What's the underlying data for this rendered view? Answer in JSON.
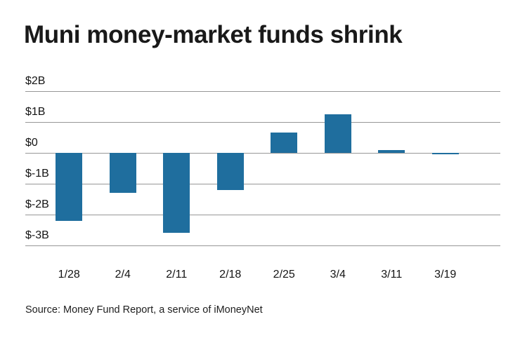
{
  "chart_data": {
    "type": "bar",
    "title": "Muni money-market funds shrink",
    "source": "Source: Money Fund Report, a service of iMoneyNet",
    "categories": [
      "1/28",
      "2/4",
      "2/11",
      "2/18",
      "2/25",
      "3/4",
      "3/11",
      "3/19"
    ],
    "values": [
      -2.2,
      -1.3,
      -2.6,
      -1.2,
      0.65,
      1.25,
      0.1,
      -0.05
    ],
    "unit": "billions USD (weekly change)",
    "xlabel": "",
    "ylabel": "",
    "ylim": [
      -3,
      2
    ],
    "yticks": [
      2,
      1,
      0,
      -1,
      -2,
      -3
    ],
    "ytick_labels": [
      "$2B",
      "$1B",
      "$0",
      "$-1B",
      "$-2B",
      "$-3B"
    ],
    "grid": true,
    "legend": "none",
    "bar_color": "#1f6e9e",
    "gridline_color": "#979797",
    "background": "#ffffff"
  }
}
